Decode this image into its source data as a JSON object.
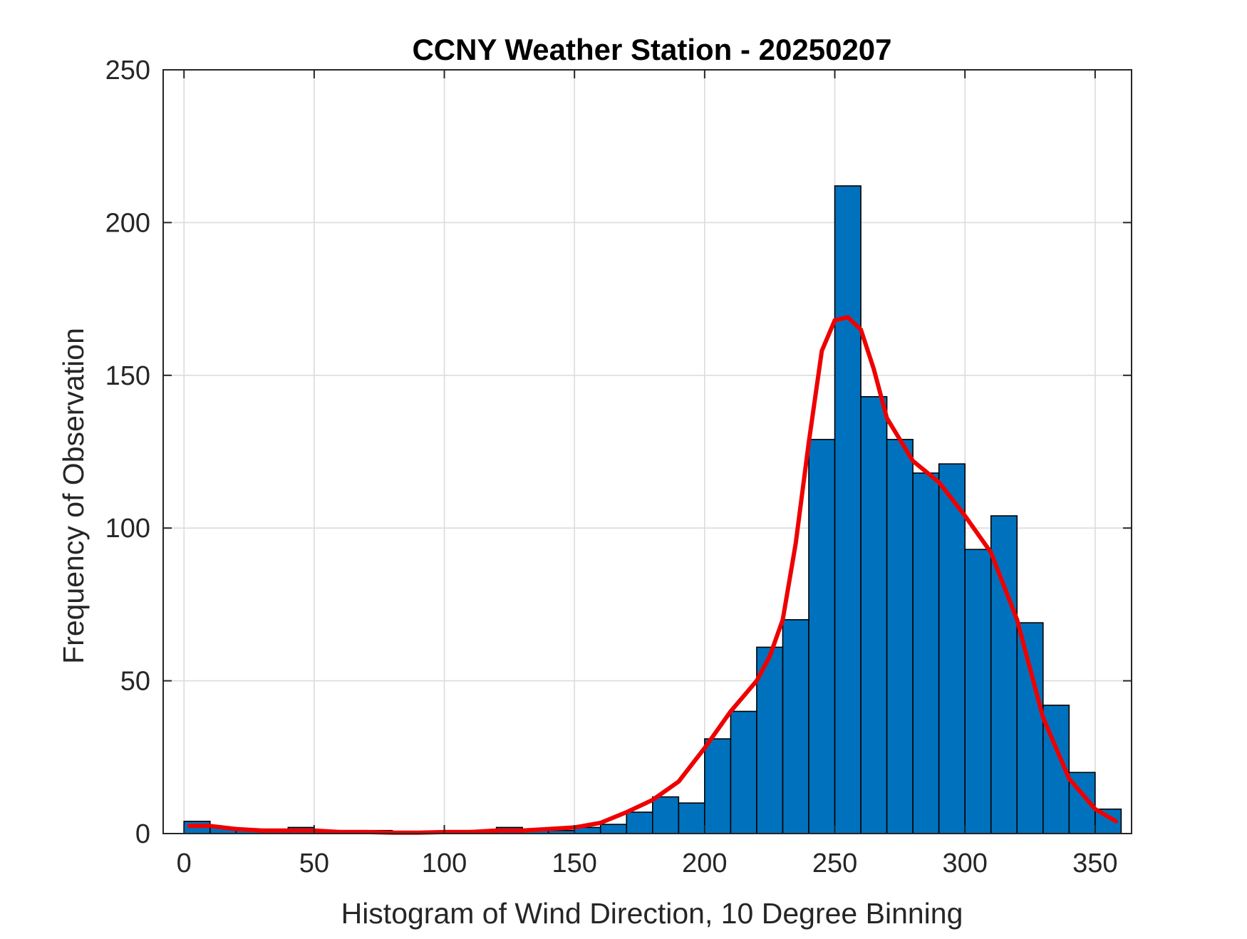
{
  "chart_data": {
    "type": "bar",
    "title": "CCNY Weather Station - 20250207",
    "xlabel": "Histogram of Wind Direction, 10 Degree Binning",
    "ylabel": "Frequency of Observation",
    "xlim": [
      -8,
      364
    ],
    "ylim": [
      0,
      250
    ],
    "xticks": [
      0,
      50,
      100,
      150,
      200,
      250,
      300,
      350
    ],
    "yticks": [
      0,
      50,
      100,
      150,
      200,
      250
    ],
    "grid": true,
    "bin_width": 10,
    "bins": [
      {
        "start": 0,
        "value": 4
      },
      {
        "start": 10,
        "value": 2
      },
      {
        "start": 20,
        "value": 1
      },
      {
        "start": 30,
        "value": 1
      },
      {
        "start": 40,
        "value": 2
      },
      {
        "start": 50,
        "value": 1
      },
      {
        "start": 60,
        "value": 1
      },
      {
        "start": 70,
        "value": 1
      },
      {
        "start": 80,
        "value": 0
      },
      {
        "start": 90,
        "value": 0
      },
      {
        "start": 100,
        "value": 1
      },
      {
        "start": 110,
        "value": 1
      },
      {
        "start": 120,
        "value": 2
      },
      {
        "start": 130,
        "value": 1
      },
      {
        "start": 140,
        "value": 1
      },
      {
        "start": 150,
        "value": 2
      },
      {
        "start": 160,
        "value": 3
      },
      {
        "start": 170,
        "value": 7
      },
      {
        "start": 180,
        "value": 12
      },
      {
        "start": 190,
        "value": 10
      },
      {
        "start": 200,
        "value": 31
      },
      {
        "start": 210,
        "value": 40
      },
      {
        "start": 220,
        "value": 61
      },
      {
        "start": 230,
        "value": 70
      },
      {
        "start": 240,
        "value": 129
      },
      {
        "start": 250,
        "value": 212
      },
      {
        "start": 260,
        "value": 143
      },
      {
        "start": 270,
        "value": 129
      },
      {
        "start": 280,
        "value": 118
      },
      {
        "start": 290,
        "value": 121
      },
      {
        "start": 300,
        "value": 93
      },
      {
        "start": 310,
        "value": 104
      },
      {
        "start": 320,
        "value": 69
      },
      {
        "start": 330,
        "value": 42
      },
      {
        "start": 340,
        "value": 20
      },
      {
        "start": 350,
        "value": 8
      }
    ],
    "fit_curve": {
      "name": "density fit",
      "color": "#ee0000",
      "x": [
        2,
        10,
        20,
        30,
        40,
        50,
        60,
        70,
        80,
        90,
        100,
        110,
        120,
        130,
        140,
        150,
        160,
        170,
        180,
        190,
        200,
        210,
        220,
        225,
        230,
        235,
        240,
        245,
        250,
        255,
        260,
        265,
        270,
        280,
        290,
        300,
        310,
        320,
        330,
        340,
        350,
        358
      ],
      "y": [
        2.5,
        2.5,
        1.5,
        1,
        1,
        1,
        0.5,
        0.5,
        0.3,
        0.3,
        0.5,
        0.5,
        1,
        1,
        1.5,
        2,
        3.5,
        7,
        11,
        17,
        28,
        40,
        50,
        58,
        70,
        95,
        128,
        158,
        168,
        169,
        165,
        152,
        136,
        122,
        115,
        104,
        92,
        70,
        38,
        18,
        8,
        4
      ]
    },
    "bar_color": "#0072bd"
  }
}
